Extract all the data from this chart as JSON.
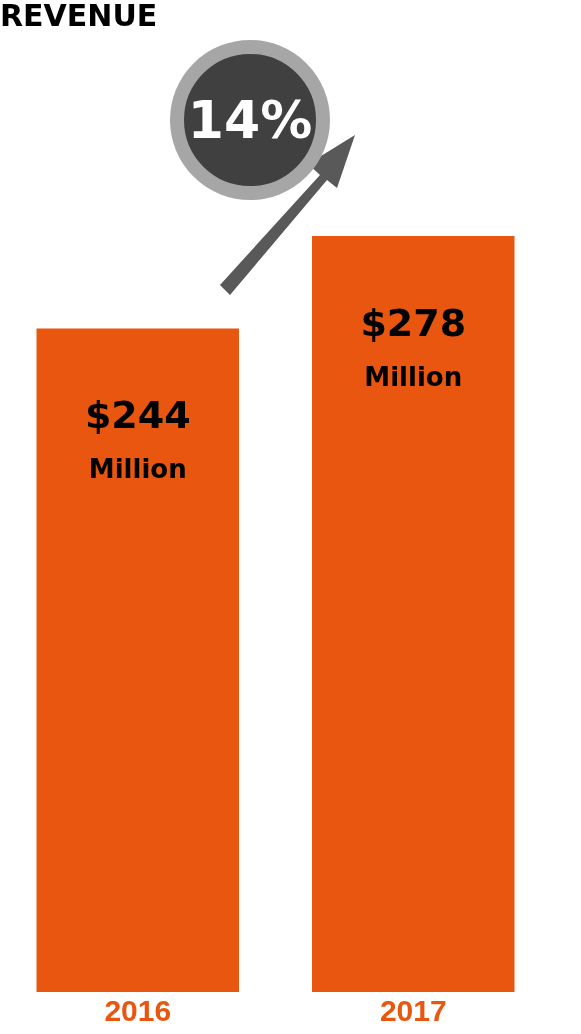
{
  "chart_data": {
    "type": "bar",
    "title": "REVENUE",
    "categories": [
      "2016",
      "2017"
    ],
    "values": [
      244,
      278
    ],
    "value_labels": [
      "$244 Million",
      "$278 Million"
    ],
    "color": "#e8560f",
    "annotations": [
      "14%"
    ],
    "tick_labels": "x",
    "grid": false,
    "legend": false
  }
}
